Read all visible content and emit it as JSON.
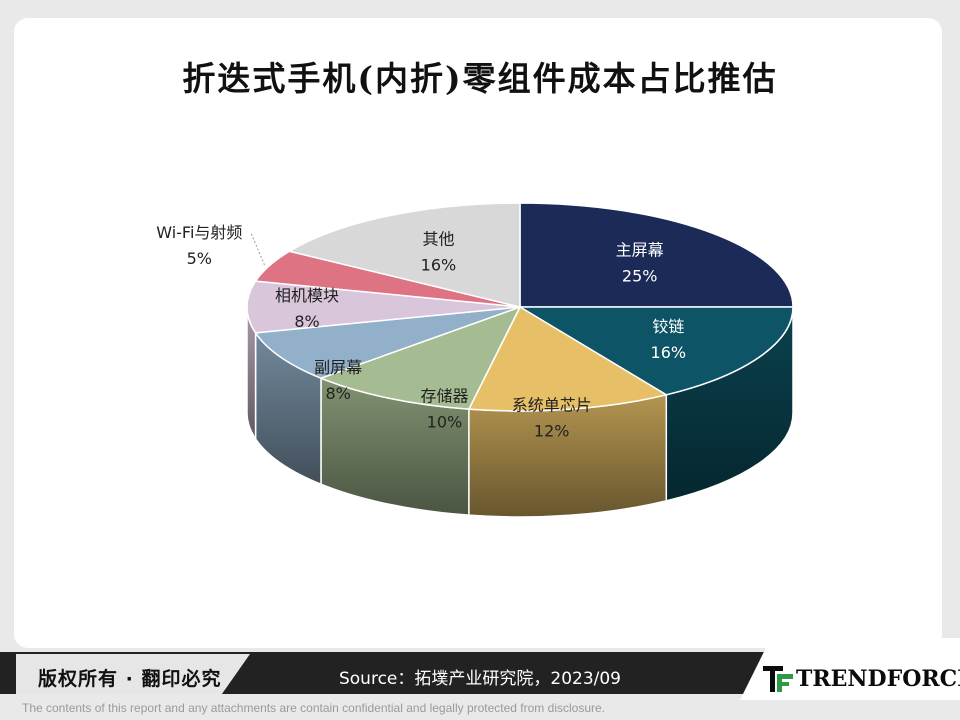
{
  "title": "折迭式手机(内折)零组件成本占比推估",
  "chart_data": {
    "type": "pie",
    "title": "折迭式手机(内折)零组件成本占比推估",
    "slices": [
      {
        "label": "主屏幕",
        "value": 25,
        "pct": "25%",
        "color": "#1b2a57"
      },
      {
        "label": "铰链",
        "value": 16,
        "pct": "16%",
        "color": "#0d5466"
      },
      {
        "label": "系统单芯片",
        "value": 12,
        "pct": "12%",
        "color": "#e7bf67"
      },
      {
        "label": "存储器",
        "value": 10,
        "pct": "10%",
        "color": "#a5bc92"
      },
      {
        "label": "副屏幕",
        "value": 8,
        "pct": "8%",
        "color": "#92b0c9"
      },
      {
        "label": "相机模块",
        "value": 8,
        "pct": "8%",
        "color": "#d9c6db"
      },
      {
        "label": "Wi-Fi与射频",
        "value": 5,
        "pct": "5%",
        "color": "#de7384"
      },
      {
        "label": "其他",
        "value": 16,
        "pct": "16%",
        "color": "#d8d8d8"
      }
    ]
  },
  "footer": {
    "copyright": "版权所有 · 翻印必究",
    "source": "Source：拓墣产业研究院，2023/09",
    "logo_text": "TRENDFORCE",
    "disclaimer": "The contents of this report and any attachments are contain confidential and legally protected from disclosure."
  }
}
